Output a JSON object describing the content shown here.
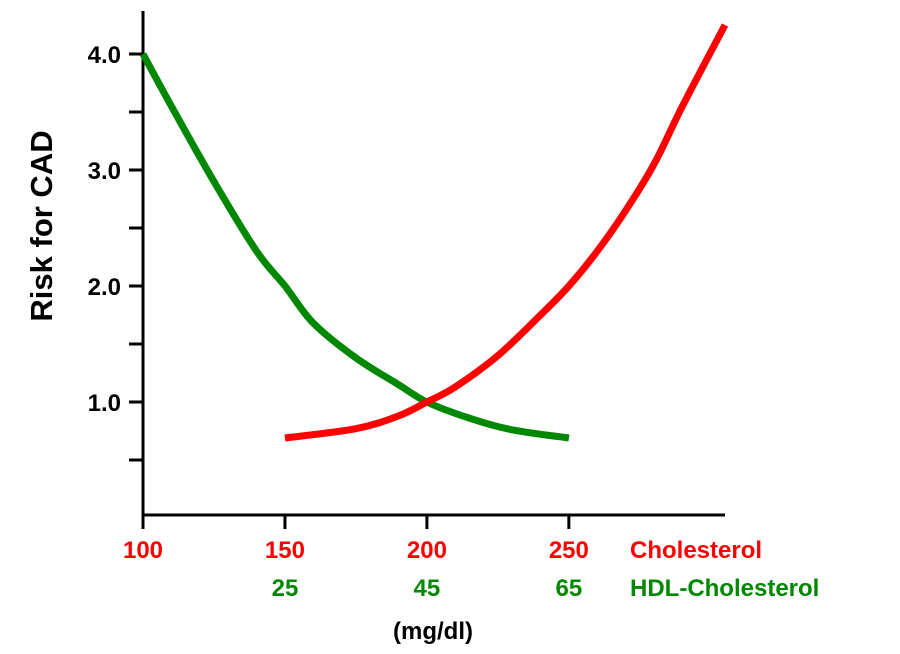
{
  "chart_data": {
    "type": "line",
    "ylabel": "Risk for CAD",
    "xlabel": "(mg/dl)",
    "xlim": [
      100,
      305
    ],
    "ylim": [
      0,
      4.25
    ],
    "y_ticks": [
      {
        "value": 0.5,
        "label": ""
      },
      {
        "value": 1.0,
        "label": "1.0"
      },
      {
        "value": 1.5,
        "label": ""
      },
      {
        "value": 2.0,
        "label": "2.0"
      },
      {
        "value": 2.5,
        "label": ""
      },
      {
        "value": 3.0,
        "label": "3.0"
      },
      {
        "value": 3.5,
        "label": ""
      },
      {
        "value": 4.0,
        "label": "4.0"
      }
    ],
    "x_ticks": [
      100,
      150,
      200,
      250
    ],
    "tick_rows": [
      {
        "name": "Cholesterol",
        "color": "#ff0000",
        "ticks": [
          {
            "at": 100,
            "label": "100"
          },
          {
            "at": 150,
            "label": "150"
          },
          {
            "at": 200,
            "label": "200"
          },
          {
            "at": 250,
            "label": "250"
          }
        ]
      },
      {
        "name": "HDL-Cholesterol",
        "color": "#008800",
        "ticks": [
          {
            "at": 150,
            "label": "25"
          },
          {
            "at": 200,
            "label": "45"
          },
          {
            "at": 250,
            "label": "65"
          }
        ]
      }
    ],
    "series": [
      {
        "name": "Cholesterol",
        "color": "#ff0000",
        "points": [
          [
            150,
            0.69
          ],
          [
            175,
            0.77
          ],
          [
            190,
            0.88
          ],
          [
            200,
            1.0
          ],
          [
            210,
            1.13
          ],
          [
            225,
            1.4
          ],
          [
            240,
            1.75
          ],
          [
            250,
            2.0
          ],
          [
            260,
            2.3
          ],
          [
            270,
            2.65
          ],
          [
            280,
            3.05
          ],
          [
            290,
            3.55
          ],
          [
            305,
            4.25
          ]
        ]
      },
      {
        "name": "HDL-Cholesterol",
        "color": "#008800",
        "points": [
          [
            100,
            4.0
          ],
          [
            110,
            3.55
          ],
          [
            125,
            2.9
          ],
          [
            140,
            2.3
          ],
          [
            150,
            2.0
          ],
          [
            160,
            1.68
          ],
          [
            175,
            1.38
          ],
          [
            190,
            1.15
          ],
          [
            200,
            1.0
          ],
          [
            215,
            0.86
          ],
          [
            230,
            0.76
          ],
          [
            250,
            0.69
          ]
        ]
      }
    ]
  }
}
